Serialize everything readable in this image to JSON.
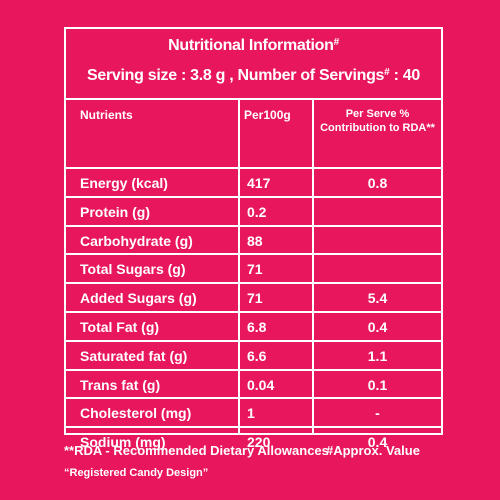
{
  "title": "Nutritional Information",
  "title_mark": "#",
  "serving_line": {
    "prefix": "Serving size : 3.8 g , Number of Servings",
    "mark": "#",
    "suffix": ": 40"
  },
  "headers": {
    "nutrients": "Nutrients",
    "per100g": "Per100g",
    "rda_line1": "Per Serve %",
    "rda_line2": "Contribution to RDA**"
  },
  "rows": [
    {
      "name": "Energy (kcal)",
      "per100g": "417",
      "rda": "0.8"
    },
    {
      "name": "Protein (g)",
      "per100g": "0.2",
      "rda": ""
    },
    {
      "name": "Carbohydrate (g)",
      "per100g": "88",
      "rda": ""
    },
    {
      "name": "Total Sugars (g)",
      "per100g": "71",
      "rda": ""
    },
    {
      "name": "Added Sugars (g)",
      "per100g": "71",
      "rda": "5.4"
    },
    {
      "name": "Total Fat (g)",
      "per100g": "6.8",
      "rda": "0.4"
    },
    {
      "name": "Saturated fat (g)",
      "per100g": "6.6",
      "rda": "1.1"
    },
    {
      "name": "Trans fat (g)",
      "per100g": "0.04",
      "rda": "0.1"
    },
    {
      "name": "Cholesterol (mg)",
      "per100g": "1",
      "rda": "-"
    },
    {
      "name": "Sodium (mg)",
      "per100g": "220",
      "rda": "0.4"
    }
  ],
  "footnotes": {
    "rda": "**RDA - Recommended Dietary Allowances",
    "approx": "#Approx. Value",
    "registered": "“Registered Candy Design”"
  },
  "colors": {
    "background": "#e8175d",
    "text": "#ffffff"
  }
}
